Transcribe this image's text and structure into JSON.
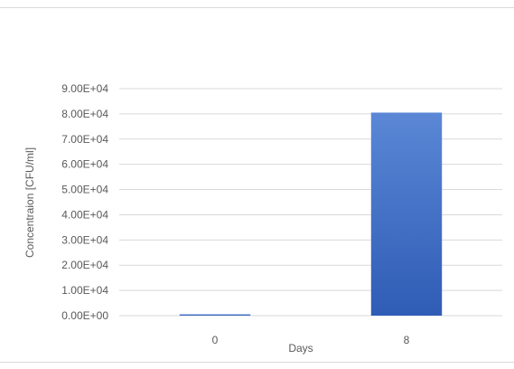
{
  "chart_data": {
    "type": "bar",
    "categories": [
      "0",
      "8"
    ],
    "values": [
      0,
      80500
    ],
    "xlabel": "Days",
    "ylabel": "Concentraion [CFU/ml]",
    "ylim": [
      0,
      90000
    ],
    "y_tick_step": 10000,
    "y_tick_labels": [
      "0.00E+00",
      "1.00E+04",
      "2.00E+04",
      "3.00E+04",
      "4.00E+04",
      "5.00E+04",
      "6.00E+04",
      "7.00E+04",
      "8.00E+04",
      "9.00E+04"
    ],
    "grid": true,
    "legend": "none",
    "colors": {
      "bar_top": "#5b87d6",
      "bar_bottom": "#2f5cb5",
      "grid": "#d9d9d9",
      "text": "#595959"
    }
  }
}
